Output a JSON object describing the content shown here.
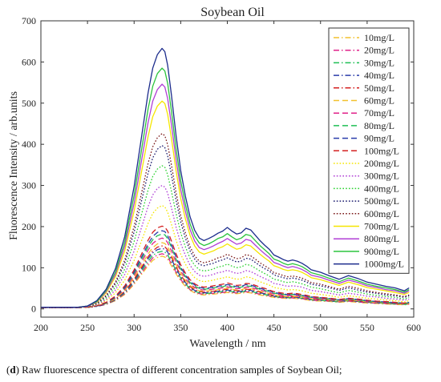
{
  "caption": {
    "label": "d",
    "text": " Raw fluorescence spectra of different concentration samples of Soybean Oil;"
  },
  "chart_data": {
    "type": "line",
    "title": "Soybean Oil",
    "xlabel": "Wavelength / nm",
    "ylabel": "Fluorescence Intensity / arb.units",
    "xlim": [
      200,
      600
    ],
    "ylim": [
      -20,
      700
    ],
    "xticks": [
      200,
      250,
      300,
      350,
      400,
      450,
      500,
      550,
      600
    ],
    "yticks": [
      0,
      100,
      200,
      300,
      400,
      500,
      600,
      700
    ],
    "grid": false,
    "legend_position": "top-right",
    "x": [
      200,
      210,
      220,
      230,
      240,
      250,
      260,
      270,
      280,
      290,
      300,
      310,
      315,
      320,
      325,
      330,
      333,
      336,
      340,
      345,
      350,
      355,
      360,
      365,
      370,
      375,
      380,
      385,
      390,
      395,
      400,
      405,
      410,
      415,
      420,
      425,
      430,
      435,
      440,
      445,
      450,
      455,
      460,
      465,
      470,
      475,
      480,
      485,
      490,
      500,
      510,
      520,
      530,
      540,
      550,
      560,
      570,
      580,
      590,
      595
    ],
    "series": [
      {
        "name": "10mg/L",
        "color": "#f2c12e",
        "style": "dashdot",
        "values": [
          3,
          3,
          3,
          3,
          3,
          4,
          6,
          11,
          20,
          35,
          60,
          90,
          105,
          118,
          125,
          128,
          126,
          120,
          105,
          85,
          68,
          55,
          45,
          39,
          35,
          34,
          35,
          36,
          37,
          38,
          40,
          38,
          37,
          38,
          40,
          39,
          36,
          34,
          32,
          30,
          28,
          27,
          26,
          25,
          26,
          25,
          24,
          22,
          20,
          19,
          18,
          16,
          18,
          16,
          14,
          13,
          12,
          11,
          10,
          11
        ]
      },
      {
        "name": "20mg/L",
        "color": "#e0218a",
        "style": "dashdot",
        "values": [
          3,
          3,
          3,
          3,
          3,
          4,
          6,
          11,
          21,
          37,
          63,
          94,
          110,
          124,
          131,
          134,
          132,
          126,
          110,
          89,
          71,
          58,
          47,
          41,
          37,
          36,
          37,
          38,
          39,
          40,
          42,
          40,
          39,
          40,
          42,
          41,
          38,
          36,
          34,
          32,
          29,
          28,
          27,
          26,
          27,
          26,
          25,
          23,
          21,
          20,
          19,
          17,
          19,
          17,
          15,
          14,
          13,
          12,
          11,
          12
        ]
      },
      {
        "name": "30mg/L",
        "color": "#1fbf55",
        "style": "dashdot",
        "values": [
          3,
          3,
          3,
          3,
          3,
          4,
          6,
          12,
          22,
          39,
          66,
          99,
          116,
          130,
          137,
          140,
          138,
          131,
          115,
          93,
          75,
          61,
          49,
          43,
          39,
          37,
          38,
          39,
          41,
          42,
          44,
          42,
          40,
          41,
          44,
          43,
          40,
          37,
          35,
          33,
          30,
          29,
          28,
          27,
          28,
          27,
          26,
          24,
          22,
          21,
          19,
          17,
          20,
          18,
          16,
          15,
          13,
          12,
          11,
          12
        ]
      },
      {
        "name": "40mg/L",
        "color": "#2a3caa",
        "style": "dashdot",
        "values": [
          3,
          3,
          3,
          3,
          3,
          4,
          6,
          12,
          23,
          41,
          69,
          104,
          122,
          136,
          144,
          147,
          145,
          138,
          121,
          98,
          78,
          64,
          52,
          45,
          41,
          39,
          40,
          41,
          43,
          44,
          46,
          44,
          42,
          43,
          46,
          45,
          42,
          39,
          37,
          35,
          31,
          30,
          29,
          28,
          29,
          28,
          27,
          25,
          23,
          22,
          20,
          18,
          21,
          18,
          16,
          15,
          14,
          13,
          12,
          13
        ]
      },
      {
        "name": "50mg/L",
        "color": "#d42020",
        "style": "dashdot",
        "values": [
          3,
          3,
          3,
          3,
          3,
          4,
          7,
          13,
          24,
          43,
          72,
          108,
          127,
          141,
          150,
          153,
          151,
          143,
          126,
          102,
          82,
          66,
          54,
          47,
          42,
          41,
          42,
          43,
          44,
          46,
          48,
          46,
          44,
          45,
          48,
          47,
          44,
          41,
          38,
          36,
          32,
          31,
          30,
          29,
          30,
          29,
          28,
          26,
          24,
          23,
          21,
          19,
          21,
          19,
          17,
          16,
          14,
          13,
          12,
          13
        ]
      },
      {
        "name": "60mg/L",
        "color": "#f2c12e",
        "style": "dashed",
        "values": [
          3,
          3,
          3,
          3,
          3,
          4,
          7,
          13,
          25,
          45,
          76,
          114,
          134,
          149,
          158,
          161,
          159,
          151,
          132,
          107,
          86,
          70,
          57,
          49,
          44,
          43,
          44,
          45,
          47,
          48,
          51,
          48,
          46,
          47,
          50,
          49,
          46,
          43,
          40,
          38,
          34,
          33,
          31,
          30,
          31,
          30,
          29,
          27,
          25,
          24,
          22,
          19,
          22,
          20,
          17,
          16,
          15,
          14,
          12,
          14
        ]
      },
      {
        "name": "70mg/L",
        "color": "#e0218a",
        "style": "dashed",
        "values": [
          3,
          3,
          3,
          3,
          3,
          4,
          7,
          14,
          27,
          48,
          81,
          122,
          143,
          159,
          168,
          172,
          170,
          161,
          141,
          114,
          92,
          74,
          61,
          52,
          47,
          46,
          47,
          48,
          50,
          51,
          54,
          51,
          49,
          50,
          53,
          52,
          49,
          46,
          43,
          40,
          36,
          35,
          33,
          32,
          33,
          32,
          30,
          28,
          26,
          25,
          23,
          20,
          23,
          21,
          18,
          17,
          15,
          14,
          13,
          14
        ]
      },
      {
        "name": "80mg/L",
        "color": "#1fbf55",
        "style": "dashed",
        "values": [
          3,
          3,
          3,
          3,
          3,
          4,
          7,
          14,
          28,
          51,
          86,
          129,
          151,
          168,
          178,
          182,
          180,
          171,
          150,
          121,
          97,
          79,
          64,
          55,
          50,
          48,
          49,
          51,
          53,
          54,
          57,
          54,
          52,
          53,
          56,
          55,
          52,
          48,
          45,
          42,
          38,
          37,
          35,
          34,
          35,
          34,
          32,
          30,
          28,
          26,
          24,
          21,
          24,
          22,
          19,
          18,
          16,
          15,
          13,
          15
        ]
      },
      {
        "name": "90mg/L",
        "color": "#2a3caa",
        "style": "dashed",
        "values": [
          3,
          3,
          3,
          3,
          3,
          4,
          7,
          15,
          29,
          53,
          90,
          135,
          158,
          176,
          186,
          190,
          188,
          178,
          156,
          126,
          101,
          82,
          67,
          58,
          52,
          50,
          51,
          53,
          55,
          57,
          59,
          57,
          54,
          55,
          59,
          58,
          54,
          50,
          47,
          44,
          40,
          38,
          36,
          35,
          36,
          35,
          33,
          31,
          29,
          27,
          25,
          22,
          25,
          23,
          20,
          18,
          17,
          15,
          14,
          16
        ]
      },
      {
        "name": "100mg/L",
        "color": "#d42020",
        "style": "dashed",
        "values": [
          3,
          3,
          3,
          3,
          3,
          4,
          8,
          16,
          31,
          56,
          95,
          143,
          167,
          186,
          197,
          201,
          199,
          189,
          165,
          134,
          107,
          87,
          71,
          61,
          55,
          53,
          54,
          56,
          58,
          60,
          63,
          60,
          57,
          58,
          62,
          61,
          57,
          53,
          50,
          46,
          42,
          40,
          38,
          37,
          38,
          37,
          35,
          33,
          30,
          28,
          26,
          23,
          26,
          24,
          21,
          19,
          18,
          16,
          14,
          16
        ]
      },
      {
        "name": "200mg/L",
        "color": "#f5e600",
        "style": "dotted",
        "values": [
          3,
          3,
          3,
          3,
          3,
          4,
          9,
          20,
          39,
          70,
          118,
          178,
          208,
          232,
          245,
          251,
          248,
          235,
          206,
          167,
          133,
          109,
          89,
          76,
          69,
          66,
          68,
          70,
          73,
          75,
          78,
          75,
          72,
          73,
          78,
          76,
          71,
          66,
          62,
          58,
          52,
          50,
          48,
          46,
          47,
          46,
          44,
          41,
          38,
          35,
          32,
          28,
          32,
          29,
          26,
          24,
          22,
          20,
          17,
          20
        ]
      },
      {
        "name": "300mg/L",
        "color": "#b03fd6",
        "style": "dotted",
        "values": [
          3,
          3,
          3,
          3,
          3,
          5,
          10,
          23,
          46,
          84,
          141,
          213,
          249,
          277,
          293,
          300,
          296,
          281,
          246,
          199,
          159,
          130,
          106,
          91,
          82,
          79,
          81,
          84,
          88,
          90,
          94,
          90,
          86,
          88,
          93,
          91,
          85,
          79,
          74,
          69,
          62,
          60,
          57,
          55,
          56,
          55,
          53,
          49,
          45,
          42,
          38,
          34,
          38,
          35,
          31,
          29,
          26,
          24,
          21,
          24
        ]
      },
      {
        "name": "400mg/L",
        "color": "#2bd130",
        "style": "dotted",
        "values": [
          4,
          4,
          4,
          4,
          4,
          5,
          12,
          27,
          53,
          97,
          164,
          247,
          289,
          322,
          340,
          348,
          344,
          326,
          286,
          232,
          185,
          151,
          123,
          106,
          95,
          92,
          94,
          97,
          102,
          104,
          109,
          104,
          100,
          102,
          108,
          106,
          99,
          92,
          86,
          80,
          72,
          70,
          66,
          64,
          66,
          64,
          61,
          57,
          53,
          49,
          44,
          39,
          45,
          41,
          36,
          33,
          30,
          28,
          24,
          28
        ]
      },
      {
        "name": "500mg/L",
        "color": "#1a1a6e",
        "style": "dotted",
        "values": [
          4,
          4,
          4,
          4,
          4,
          5,
          13,
          31,
          61,
          111,
          187,
          282,
          330,
          367,
          388,
          397,
          392,
          372,
          326,
          264,
          211,
          172,
          141,
          121,
          108,
          105,
          108,
          111,
          116,
          119,
          124,
          119,
          114,
          116,
          123,
          121,
          113,
          105,
          98,
          92,
          83,
          79,
          76,
          73,
          75,
          73,
          70,
          65,
          60,
          56,
          51,
          45,
          51,
          46,
          41,
          38,
          34,
          32,
          28,
          32
        ]
      },
      {
        "name": "600mg/L",
        "color": "#7a1818",
        "style": "dotted",
        "values": [
          4,
          4,
          4,
          4,
          4,
          6,
          14,
          33,
          65,
          119,
          201,
          302,
          354,
          394,
          416,
          426,
          421,
          399,
          350,
          283,
          226,
          185,
          151,
          129,
          116,
          112,
          115,
          119,
          124,
          127,
          133,
          127,
          122,
          124,
          132,
          129,
          121,
          112,
          105,
          98,
          88,
          85,
          81,
          78,
          80,
          78,
          75,
          70,
          64,
          60,
          54,
          48,
          55,
          50,
          44,
          40,
          37,
          34,
          30,
          34
        ]
      },
      {
        "name": "700mg/L",
        "color": "#f5e600",
        "style": "solid",
        "values": [
          4,
          4,
          4,
          4,
          4,
          6,
          16,
          39,
          78,
          141,
          238,
          358,
          419,
          467,
          493,
          505,
          499,
          473,
          415,
          336,
          268,
          219,
          179,
          153,
          138,
          133,
          137,
          141,
          147,
          151,
          158,
          151,
          145,
          148,
          156,
          153,
          143,
          133,
          124,
          116,
          105,
          101,
          96,
          93,
          95,
          93,
          89,
          83,
          76,
          71,
          64,
          57,
          65,
          59,
          52,
          48,
          44,
          40,
          35,
          40
        ]
      },
      {
        "name": "800mg/L",
        "color": "#b03fd6",
        "style": "solid",
        "values": [
          4,
          4,
          4,
          4,
          4,
          6,
          17,
          42,
          84,
          152,
          257,
          387,
          453,
          505,
          533,
          546,
          539,
          511,
          448,
          363,
          290,
          237,
          193,
          165,
          149,
          144,
          148,
          153,
          159,
          164,
          171,
          164,
          157,
          160,
          169,
          166,
          155,
          144,
          134,
          125,
          113,
          109,
          104,
          100,
          103,
          100,
          96,
          90,
          82,
          77,
          69,
          62,
          70,
          64,
          56,
          52,
          47,
          44,
          38,
          44
        ]
      },
      {
        "name": "900mg/L",
        "color": "#2bc43d",
        "style": "solid",
        "values": [
          4,
          4,
          4,
          4,
          4,
          7,
          18,
          45,
          90,
          163,
          276,
          415,
          486,
          541,
          572,
          585,
          578,
          548,
          481,
          389,
          311,
          254,
          207,
          177,
          160,
          154,
          158,
          164,
          171,
          175,
          183,
          175,
          168,
          172,
          181,
          178,
          166,
          154,
          144,
          134,
          121,
          117,
          111,
          107,
          110,
          107,
          103,
          96,
          88,
          82,
          74,
          66,
          75,
          68,
          60,
          55,
          51,
          47,
          41,
          47
        ]
      },
      {
        "name": "1000mg/L",
        "color": "#1c2c8c",
        "style": "solid",
        "values": [
          4,
          4,
          4,
          4,
          4,
          7,
          20,
          48,
          98,
          176,
          298,
          449,
          525,
          585,
          618,
          633,
          625,
          592,
          520,
          421,
          336,
          274,
          224,
          191,
          172,
          166,
          171,
          177,
          184,
          189,
          198,
          189,
          182,
          185,
          196,
          192,
          179,
          166,
          155,
          145,
          131,
          126,
          120,
          116,
          119,
          116,
          111,
          104,
          95,
          89,
          80,
          72,
          81,
          74,
          65,
          60,
          55,
          51,
          44,
          51
        ]
      }
    ]
  }
}
